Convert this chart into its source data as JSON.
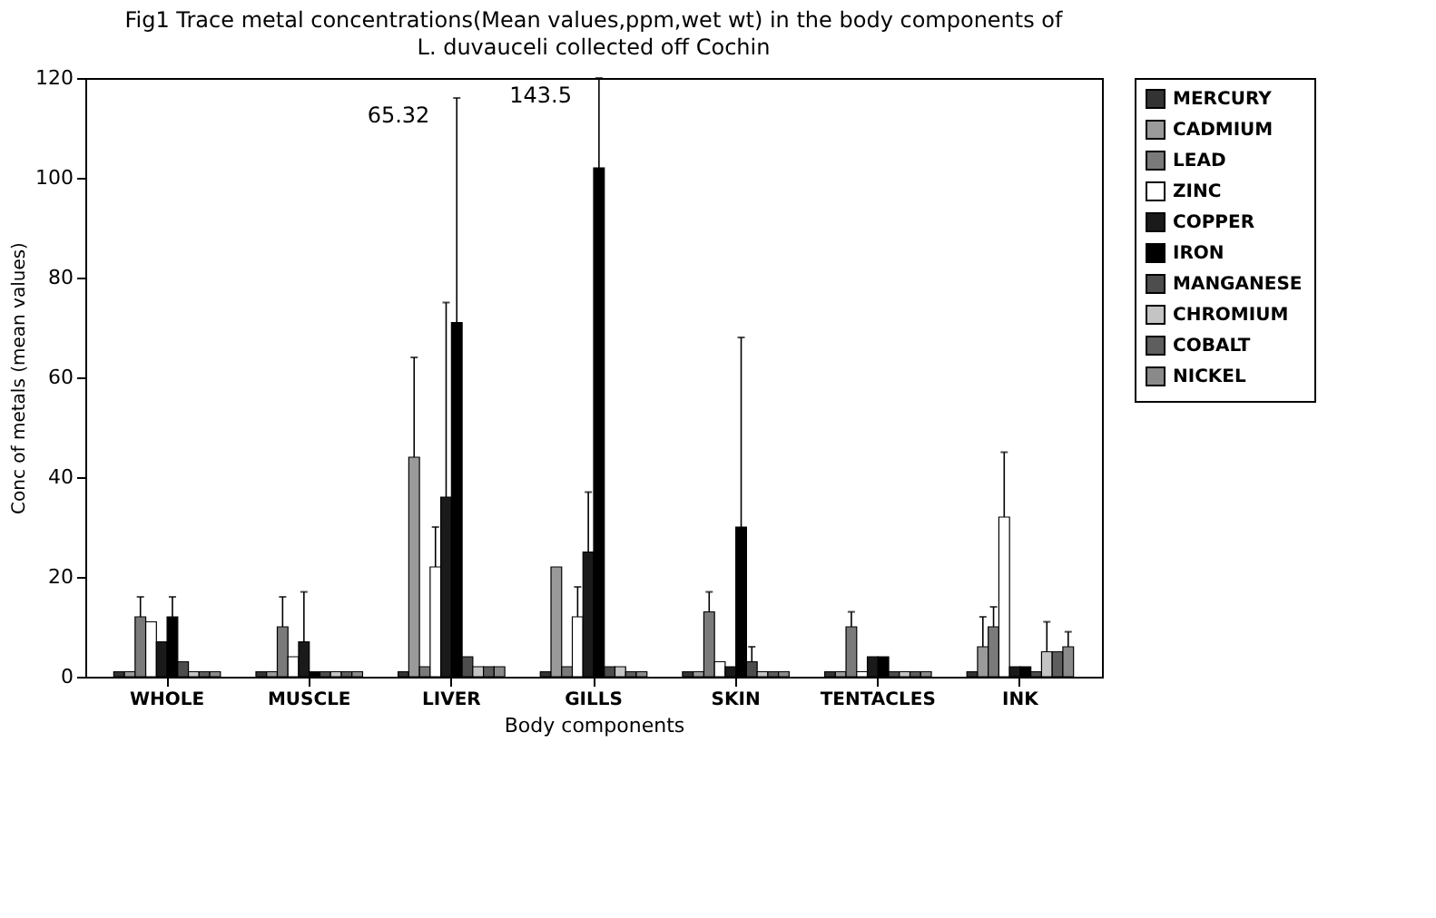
{
  "chart_data": {
    "type": "bar",
    "title": "Fig1 Trace metal concentrations(Mean values,ppm,wet wt) in the body components of",
    "subtitle": "L. duvauceli collected off Cochin",
    "xlabel": "Body components",
    "ylabel": "Conc of metals (mean values)",
    "categories": [
      "WHOLE",
      "MUSCLE",
      "LIVER",
      "GILLS",
      "SKIN",
      "TENTACLES",
      "INK"
    ],
    "ylim": [
      0,
      120
    ],
    "yticks": [
      0,
      20,
      40,
      60,
      80,
      100,
      120
    ],
    "grid": false,
    "legend": "right",
    "series": [
      {
        "name": "MERCURY",
        "color": "#333333",
        "values": [
          1,
          1,
          1,
          1,
          1,
          1,
          1
        ]
      },
      {
        "name": "CADMIUM",
        "color": "#9a9a9a",
        "values": [
          1,
          1,
          44,
          22,
          1,
          1,
          6
        ],
        "errors": [
          null,
          null,
          [
            44,
            64
          ],
          null,
          null,
          null,
          [
            6,
            12
          ]
        ]
      },
      {
        "name": "LEAD",
        "color": "#7a7a7a",
        "values": [
          12,
          10,
          2,
          2,
          13,
          10,
          10
        ],
        "errors": [
          [
            12,
            16
          ],
          [
            10,
            16
          ],
          null,
          null,
          [
            13,
            17
          ],
          [
            10,
            13
          ],
          [
            10,
            14
          ]
        ]
      },
      {
        "name": "ZINC",
        "color": "#ffffff",
        "values": [
          11,
          4,
          22,
          12,
          3,
          1,
          32
        ],
        "errors": [
          null,
          null,
          [
            22,
            30
          ],
          [
            12,
            18
          ],
          null,
          null,
          [
            32,
            45
          ]
        ]
      },
      {
        "name": "COPPER",
        "color": "#1a1a1a",
        "values": [
          7,
          7,
          36,
          25,
          2,
          4,
          2
        ],
        "errors": [
          null,
          [
            7,
            17
          ],
          [
            36,
            75
          ],
          [
            25,
            37
          ],
          null,
          null,
          null
        ]
      },
      {
        "name": "IRON",
        "color": "#000000",
        "values": [
          12,
          1,
          71,
          102,
          30,
          4,
          2
        ],
        "errors": [
          [
            12,
            16
          ],
          null,
          [
            71,
            116
          ],
          [
            102,
            120
          ],
          [
            30,
            68
          ],
          null,
          null
        ]
      },
      {
        "name": "MANGANESE",
        "color": "#4d4d4d",
        "values": [
          3,
          1,
          4,
          2,
          3,
          1,
          1
        ],
        "errors": [
          null,
          null,
          null,
          null,
          [
            3,
            6
          ],
          null,
          null
        ]
      },
      {
        "name": "CHROMIUM",
        "color": "#c4c4c4",
        "values": [
          1,
          1,
          2,
          2,
          1,
          1,
          5
        ],
        "errors": [
          null,
          null,
          null,
          null,
          null,
          null,
          [
            5,
            11
          ]
        ]
      },
      {
        "name": "COBALT",
        "color": "#5e5e5e",
        "values": [
          1,
          1,
          2,
          1,
          1,
          1,
          5
        ]
      },
      {
        "name": "NICKEL",
        "color": "#8a8a8a",
        "values": [
          1,
          1,
          2,
          1,
          1,
          1,
          6
        ],
        "errors": [
          null,
          null,
          null,
          null,
          null,
          null,
          [
            6,
            9
          ]
        ]
      }
    ],
    "annotations": [
      {
        "text": "65.32",
        "x": "LIVER",
        "y": 114
      },
      {
        "text": "143.5",
        "x": "GILLS",
        "y": 118
      }
    ]
  }
}
